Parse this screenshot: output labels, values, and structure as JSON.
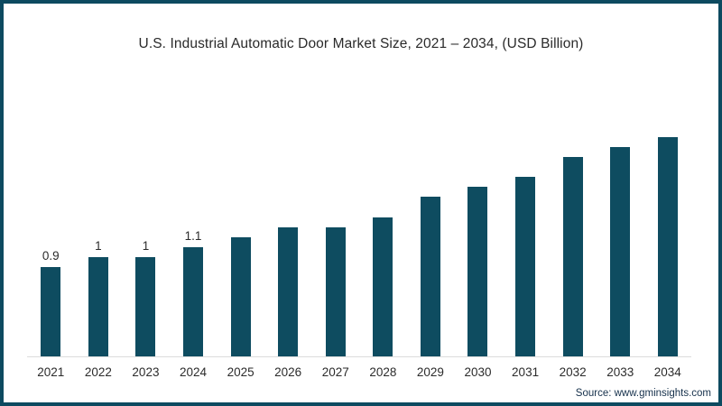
{
  "title": "U.S. Industrial Automatic Door Market Size, 2021 – 2034, (USD Billion)",
  "source": "Source: www.gminsights.com",
  "colors": {
    "bar": "#0e4c60",
    "frame_border": "#0d4a60",
    "axis_line": "#dcdcdc",
    "text": "#2b2b2b"
  },
  "chart_data": {
    "type": "bar",
    "title": "U.S. Industrial Automatic Door Market Size, 2021 – 2034, (USD Billion)",
    "categories": [
      "2021",
      "2022",
      "2023",
      "2024",
      "2025",
      "2026",
      "2027",
      "2028",
      "2029",
      "2030",
      "2031",
      "2032",
      "2033",
      "2034"
    ],
    "values": [
      0.9,
      1,
      1,
      1.1,
      1.2,
      1.3,
      1.3,
      1.4,
      1.6,
      1.7,
      1.8,
      2.0,
      2.1,
      2.2
    ],
    "data_labels": [
      "0.9",
      "1",
      "1",
      "1.1",
      null,
      null,
      null,
      null,
      null,
      null,
      null,
      null,
      null,
      null
    ],
    "xlabel": "",
    "ylabel": "USD Billion",
    "ylim": [
      0,
      2.4
    ],
    "grid": false,
    "legend_position": "none",
    "bar_color": "#0e4c60"
  }
}
